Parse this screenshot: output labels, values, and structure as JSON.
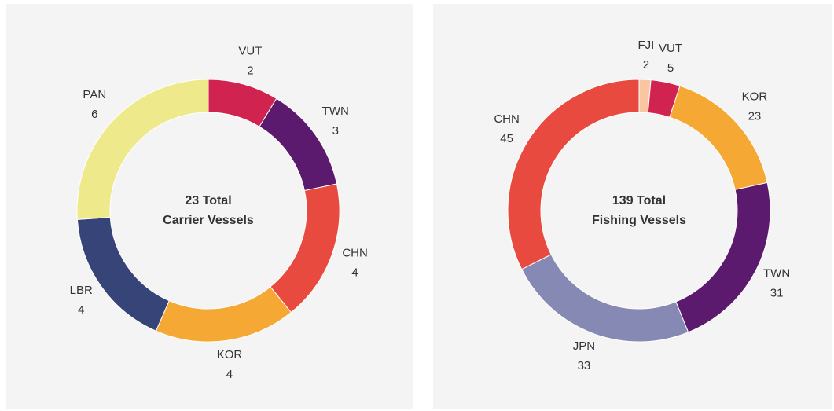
{
  "chart_data": [
    {
      "type": "donut",
      "center_text": [
        "23 Total",
        "Carrier Vessels"
      ],
      "categories": [
        "VUT",
        "TWN",
        "CHN",
        "KOR",
        "LBR",
        "PAN"
      ],
      "values": [
        2,
        3,
        4,
        4,
        4,
        6
      ],
      "colors": [
        "#d0234f",
        "#5c1a6e",
        "#e84a3f",
        "#f5a833",
        "#374478",
        "#eeea8c"
      ]
    },
    {
      "type": "donut",
      "center_text": [
        "139 Total",
        "Fishing Vessels"
      ],
      "categories": [
        "FJI",
        "VUT",
        "KOR",
        "TWN",
        "JPN",
        "CHN"
      ],
      "values": [
        2,
        5,
        23,
        31,
        33,
        45
      ],
      "colors": [
        "#f8c6a0",
        "#d0234f",
        "#f5a833",
        "#5c1a6e",
        "#8689b3",
        "#e84a3f"
      ]
    }
  ]
}
